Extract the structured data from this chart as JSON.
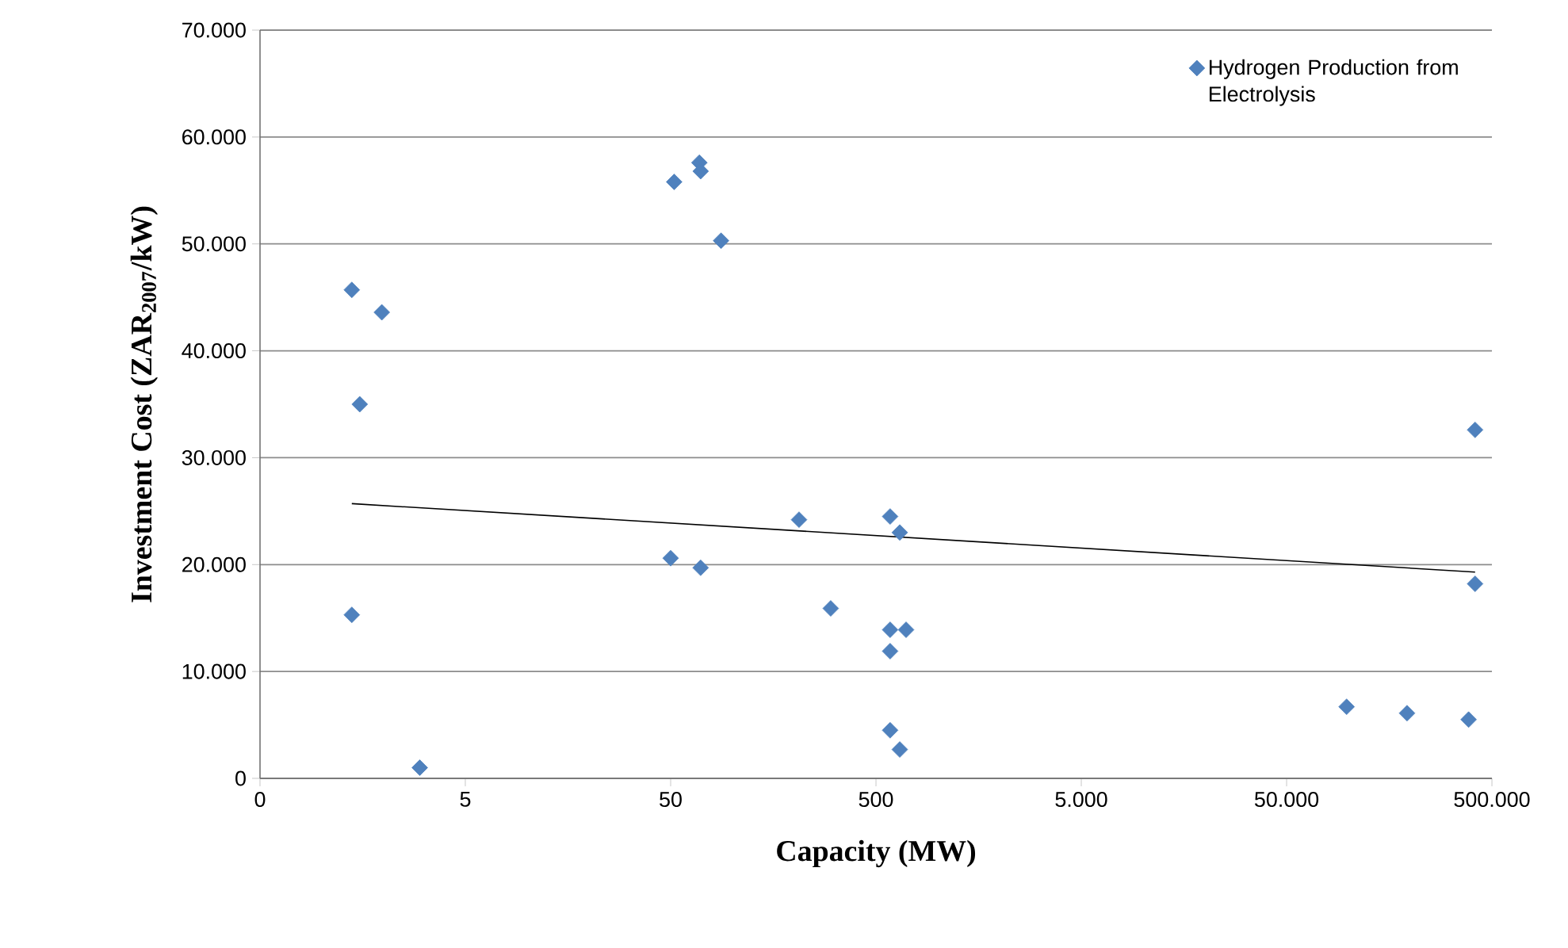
{
  "chart_data": {
    "type": "scatter",
    "xlabel": "Capacity (MW)",
    "ylabel": "Investment Cost (ZAR$_{2007}$/kW)",
    "log": "x",
    "grid": "y",
    "legend": "top right",
    "xlim": [
      0.5,
      500000
    ],
    "ylim": [
      0,
      70000
    ],
    "xticks": [
      {
        "value": 0.5,
        "label": "0"
      },
      5,
      50,
      500,
      {
        "value": 5000,
        "label": "5.000"
      },
      {
        "value": 50000,
        "label": "50.000"
      },
      {
        "value": 500000,
        "label": "500.000"
      }
    ],
    "yticks": [
      0,
      {
        "value": 10000,
        "label": "10.000"
      },
      {
        "value": 20000,
        "label": "20.000"
      },
      {
        "value": 30000,
        "label": "30.000"
      },
      {
        "value": 40000,
        "label": "40.000"
      },
      {
        "value": 50000,
        "label": "50.000"
      },
      {
        "value": 60000,
        "label": "60.000"
      },
      {
        "value": 70000,
        "label": "70.000"
      }
    ],
    "series": [
      {
        "name": "Hydrogen Production from Electrolysis",
        "color": "#4f81bd",
        "marker": "diamond",
        "x": [
          1.4,
          1.4,
          1.53,
          1.96,
          3.0,
          50,
          52,
          69,
          70,
          70,
          88,
          211,
          301,
          586,
          586,
          586,
          586,
          653,
          653,
          701,
          98000,
          193000,
          385000,
          414000,
          414000
        ],
        "values": [
          15300,
          45700,
          35000,
          43600,
          1000,
          20600,
          55800,
          57600,
          56800,
          19700,
          50300,
          24200,
          15900,
          24500,
          13900,
          11900,
          4500,
          23000,
          2700,
          13900,
          6700,
          6100,
          5500,
          32600,
          18200
        ]
      },
      {
        "color": "#000000",
        "type": "line",
        "marker": "none",
        "x": [
          1.4,
          414000
        ],
        "values": [
          25700,
          19300
        ]
      }
    ]
  }
}
